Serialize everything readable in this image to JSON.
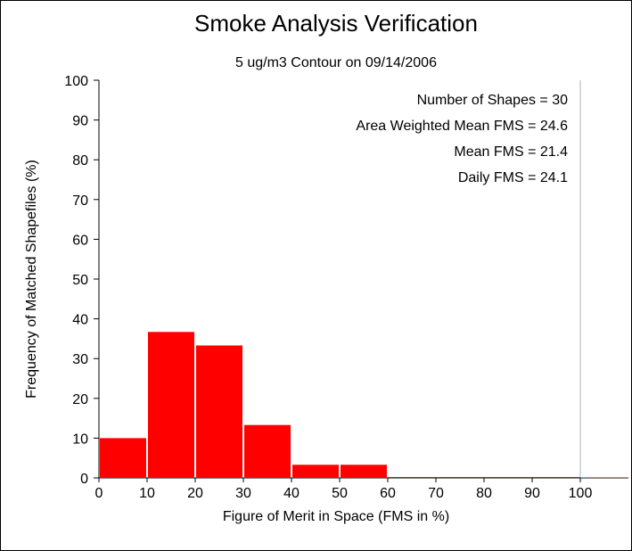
{
  "chart_data": {
    "type": "bar",
    "title": "Smoke Analysis Verification",
    "subtitle": "5 ug/m3 Contour on 09/14/2006",
    "xlabel": "Figure of Merit in Space (FMS in %)",
    "ylabel": "Frequency of Matched Shapefiles (%)",
    "bins": [
      {
        "from": 0,
        "to": 10,
        "value": 10.0
      },
      {
        "from": 10,
        "to": 20,
        "value": 36.7
      },
      {
        "from": 20,
        "to": 30,
        "value": 33.3
      },
      {
        "from": 30,
        "to": 40,
        "value": 13.3
      },
      {
        "from": 40,
        "to": 50,
        "value": 3.3
      },
      {
        "from": 50,
        "to": 60,
        "value": 3.3
      },
      {
        "from": 60,
        "to": 70,
        "value": 0
      },
      {
        "from": 70,
        "to": 80,
        "value": 0
      },
      {
        "from": 80,
        "to": 90,
        "value": 0
      },
      {
        "from": 90,
        "to": 100,
        "value": 0
      }
    ],
    "xlim": [
      0,
      110
    ],
    "ylim": [
      0,
      100
    ],
    "xticks": [
      "0",
      "10",
      "20",
      "30",
      "40",
      "50",
      "60",
      "70",
      "80",
      "90",
      "100"
    ],
    "yticks": [
      "0",
      "10",
      "20",
      "30",
      "40",
      "50",
      "60",
      "70",
      "80",
      "90",
      "100"
    ],
    "bar_color": "#ff0000",
    "grid": false,
    "stats": [
      "Number of Shapes = 30",
      "Area Weighted Mean FMS = 24.6",
      "Mean FMS = 21.4",
      "Daily FMS = 24.1"
    ]
  }
}
